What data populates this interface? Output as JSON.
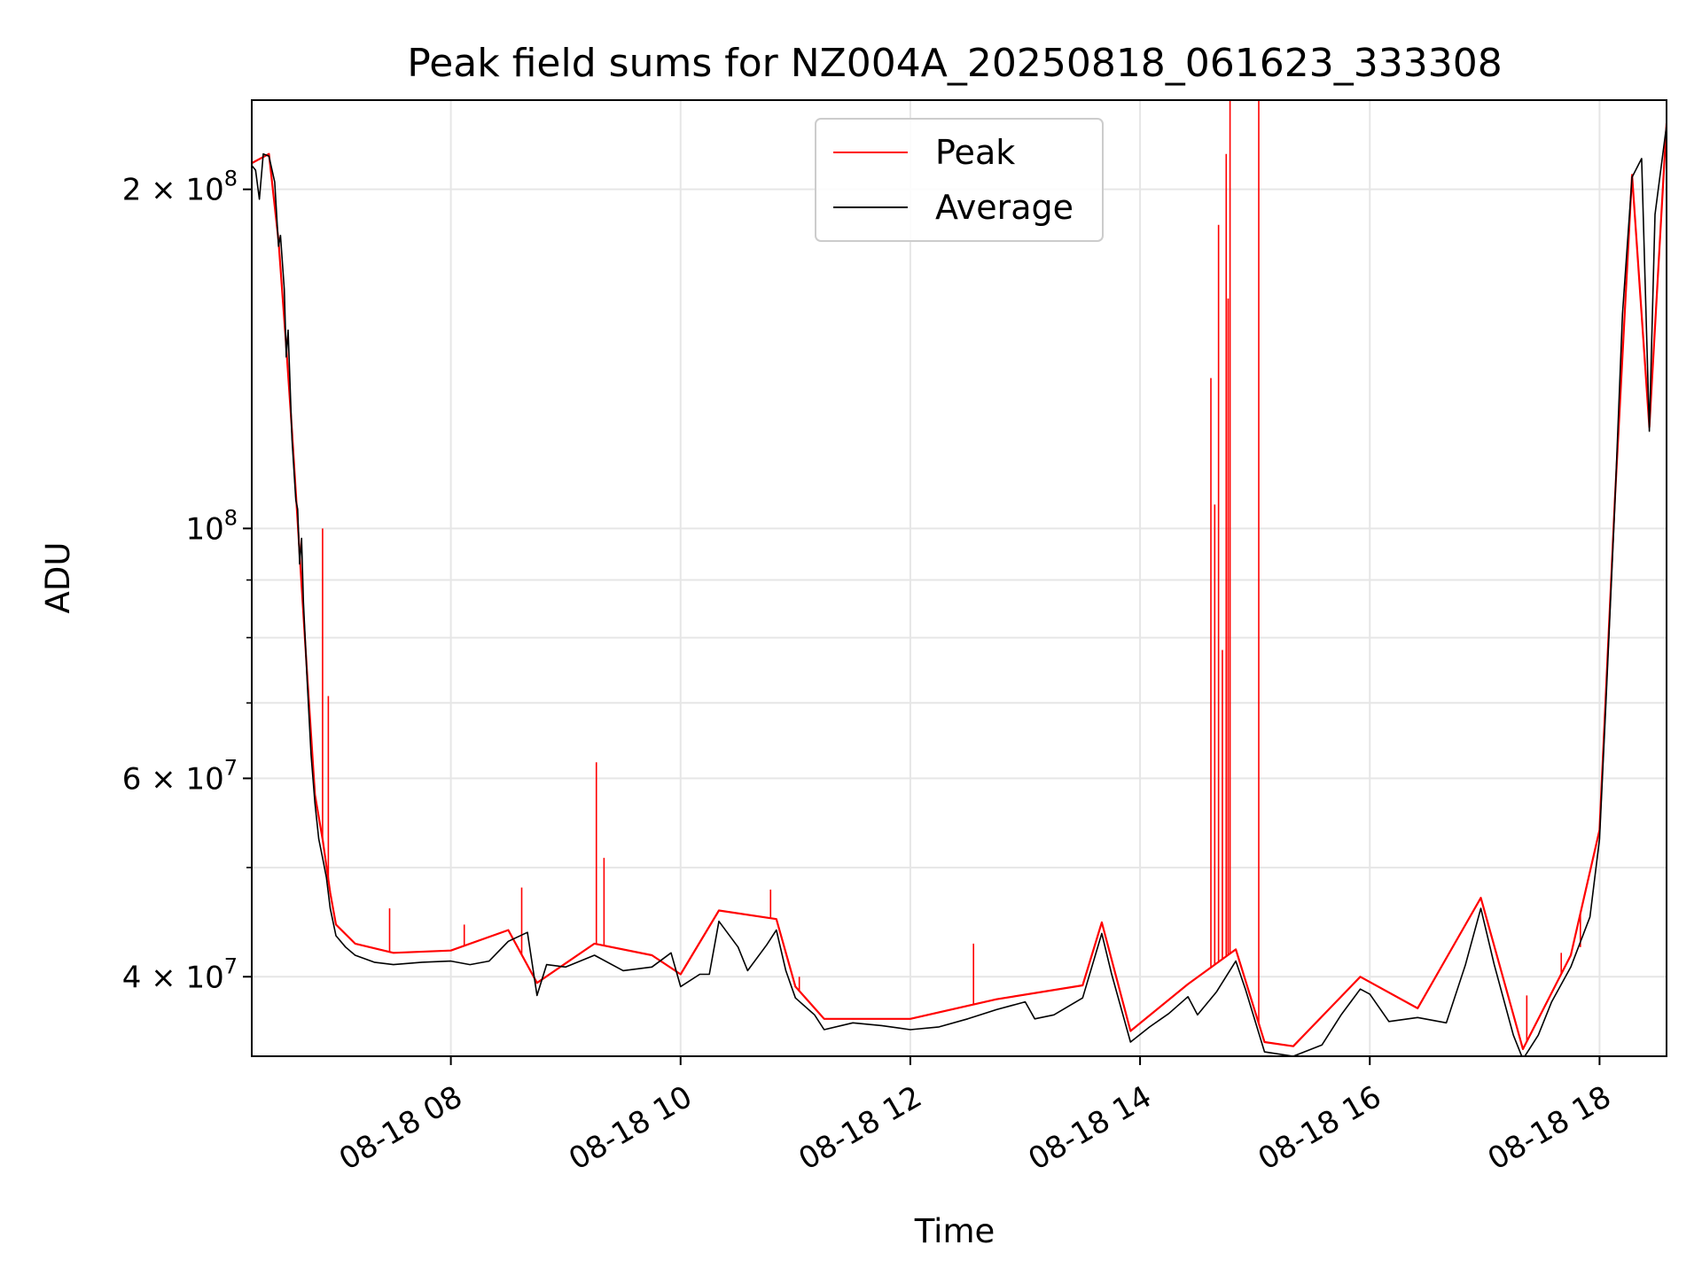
{
  "chart_data": {
    "type": "line",
    "title": "Peak field sums for NZ004A_20250818_061623_333308",
    "xlabel": "Time",
    "ylabel": "ADU",
    "yscale": "log",
    "ylim": [
      34000000,
      240000000
    ],
    "xlim": [
      "2025-08-18 06:16",
      "2025-08-18 18:35"
    ],
    "grid": true,
    "legend": {
      "placement": "upper-center",
      "entries": [
        "Peak",
        "Average"
      ]
    },
    "x_ticks": [
      {
        "t": "2025-08-18 08:00",
        "label": "08-18 08"
      },
      {
        "t": "2025-08-18 10:00",
        "label": "08-18 10"
      },
      {
        "t": "2025-08-18 12:00",
        "label": "08-18 12"
      },
      {
        "t": "2025-08-18 14:00",
        "label": "08-18 14"
      },
      {
        "t": "2025-08-18 16:00",
        "label": "08-18 16"
      },
      {
        "t": "2025-08-18 18:00",
        "label": "08-18 18"
      }
    ],
    "y_ticks": [
      {
        "value": 40000000,
        "mantissa": "4",
        "exponent": "7"
      },
      {
        "value": 60000000,
        "mantissa": "6",
        "exponent": "7"
      },
      {
        "value": 100000000,
        "mantissa": "",
        "exponent": "8"
      },
      {
        "value": 200000000,
        "mantissa": "2",
        "exponent": "8"
      }
    ],
    "y_minor_ticks": [
      50000000,
      70000000,
      80000000,
      90000000
    ],
    "series": [
      {
        "name": "Average",
        "color": "#000000",
        "points": [
          [
            "2025-08-18 06:16",
            210000000
          ],
          [
            "2025-08-18 06:18",
            208000000
          ],
          [
            "2025-08-18 06:20",
            196000000
          ],
          [
            "2025-08-18 06:22",
            215000000
          ],
          [
            "2025-08-18 06:25",
            214000000
          ],
          [
            "2025-08-18 06:28",
            203000000
          ],
          [
            "2025-08-18 06:30",
            178000000
          ],
          [
            "2025-08-18 06:31",
            182000000
          ],
          [
            "2025-08-18 06:33",
            163000000
          ],
          [
            "2025-08-18 06:34",
            142000000
          ],
          [
            "2025-08-18 06:35",
            150000000
          ],
          [
            "2025-08-18 06:37",
            120000000
          ],
          [
            "2025-08-18 06:39",
            106000000
          ],
          [
            "2025-08-18 06:40",
            104000000
          ],
          [
            "2025-08-18 06:41",
            93000000
          ],
          [
            "2025-08-18 06:42",
            98000000
          ],
          [
            "2025-08-18 06:43",
            86000000
          ],
          [
            "2025-08-18 06:45",
            73000000
          ],
          [
            "2025-08-18 06:47",
            63000000
          ],
          [
            "2025-08-18 06:49",
            57000000
          ],
          [
            "2025-08-18 06:51",
            53000000
          ],
          [
            "2025-08-18 06:53",
            51000000
          ],
          [
            "2025-08-18 06:55",
            49000000
          ],
          [
            "2025-08-18 06:57",
            46000000
          ],
          [
            "2025-08-18 07:00",
            43500000
          ],
          [
            "2025-08-18 07:05",
            42500000
          ],
          [
            "2025-08-18 07:10",
            41800000
          ],
          [
            "2025-08-18 07:20",
            41200000
          ],
          [
            "2025-08-18 07:30",
            41000000
          ],
          [
            "2025-08-18 07:45",
            41200000
          ],
          [
            "2025-08-18 08:00",
            41300000
          ],
          [
            "2025-08-18 08:10",
            41000000
          ],
          [
            "2025-08-18 08:20",
            41300000
          ],
          [
            "2025-08-18 08:30",
            43000000
          ],
          [
            "2025-08-18 08:40",
            43800000
          ],
          [
            "2025-08-18 08:50",
            41000000
          ],
          [
            "2025-08-18 08:45",
            38500000
          ],
          [
            "2025-08-18 09:00",
            40800000
          ],
          [
            "2025-08-18 09:15",
            41800000
          ],
          [
            "2025-08-18 09:30",
            40500000
          ],
          [
            "2025-08-18 09:45",
            40800000
          ],
          [
            "2025-08-18 09:55",
            42000000
          ],
          [
            "2025-08-18 10:00",
            39200000
          ],
          [
            "2025-08-18 10:10",
            40200000
          ],
          [
            "2025-08-18 10:15",
            40200000
          ],
          [
            "2025-08-18 10:20",
            44800000
          ],
          [
            "2025-08-18 10:30",
            42500000
          ],
          [
            "2025-08-18 10:35",
            40500000
          ],
          [
            "2025-08-18 10:45",
            42700000
          ],
          [
            "2025-08-18 10:50",
            44000000
          ],
          [
            "2025-08-18 10:55",
            40500000
          ],
          [
            "2025-08-18 11:00",
            38300000
          ],
          [
            "2025-08-18 11:10",
            37000000
          ],
          [
            "2025-08-18 11:15",
            35900000
          ],
          [
            "2025-08-18 11:30",
            36400000
          ],
          [
            "2025-08-18 11:45",
            36200000
          ],
          [
            "2025-08-18 12:00",
            35900000
          ],
          [
            "2025-08-18 12:15",
            36100000
          ],
          [
            "2025-08-18 12:30",
            36700000
          ],
          [
            "2025-08-18 12:45",
            37400000
          ],
          [
            "2025-08-18 13:00",
            38000000
          ],
          [
            "2025-08-18 13:05",
            36700000
          ],
          [
            "2025-08-18 13:15",
            37000000
          ],
          [
            "2025-08-18 13:30",
            38300000
          ],
          [
            "2025-08-18 13:40",
            43700000
          ],
          [
            "2025-08-18 13:45",
            40300000
          ],
          [
            "2025-08-18 13:55",
            35000000
          ],
          [
            "2025-08-18 14:05",
            36100000
          ],
          [
            "2025-08-18 14:15",
            37100000
          ],
          [
            "2025-08-18 14:25",
            38400000
          ],
          [
            "2025-08-18 14:30",
            37000000
          ],
          [
            "2025-08-18 14:40",
            38800000
          ],
          [
            "2025-08-18 14:50",
            41300000
          ],
          [
            "2025-08-18 14:55",
            39000000
          ],
          [
            "2025-08-18 15:05",
            34300000
          ],
          [
            "2025-08-18 15:20",
            34000000
          ],
          [
            "2025-08-18 15:35",
            34800000
          ],
          [
            "2025-08-18 15:45",
            37000000
          ],
          [
            "2025-08-18 15:55",
            39000000
          ],
          [
            "2025-08-18 16:00",
            38600000
          ],
          [
            "2025-08-18 16:10",
            36500000
          ],
          [
            "2025-08-18 16:25",
            36800000
          ],
          [
            "2025-08-18 16:40",
            36400000
          ],
          [
            "2025-08-18 16:50",
            41000000
          ],
          [
            "2025-08-18 16:58",
            46000000
          ],
          [
            "2025-08-18 17:05",
            41000000
          ],
          [
            "2025-08-18 17:15",
            35500000
          ],
          [
            "2025-08-18 17:20",
            33800000
          ],
          [
            "2025-08-18 17:28",
            35500000
          ],
          [
            "2025-08-18 17:35",
            38000000
          ],
          [
            "2025-08-18 17:45",
            40800000
          ],
          [
            "2025-08-18 17:55",
            45200000
          ],
          [
            "2025-08-18 18:00",
            53000000
          ],
          [
            "2025-08-18 18:03",
            68000000
          ],
          [
            "2025-08-18 18:08",
            105000000
          ],
          [
            "2025-08-18 18:12",
            155000000
          ],
          [
            "2025-08-18 18:17",
            205000000
          ],
          [
            "2025-08-18 18:22",
            213000000
          ],
          [
            "2025-08-18 18:26",
            122000000
          ],
          [
            "2025-08-18 18:29",
            190000000
          ],
          [
            "2025-08-18 18:35",
            228000000
          ]
        ]
      },
      {
        "name": "Peak",
        "color": "#ff0000",
        "points": [
          [
            "2025-08-18 06:16",
            211000000
          ],
          [
            "2025-08-18 06:25",
            215000000
          ],
          [
            "2025-08-18 06:30",
            180000000
          ],
          [
            "2025-08-18 06:34",
            145000000
          ],
          [
            "2025-08-18 06:37",
            122000000
          ],
          [
            "2025-08-18 06:41",
            95000000
          ],
          [
            "2025-08-18 06:45",
            74000000
          ],
          [
            "2025-08-18 06:49",
            58000000
          ],
          [
            "2025-08-18 06:53",
            53000000
          ],
          [
            "2025-08-18 06:57",
            47500000
          ],
          [
            "2025-08-18 07:00",
            44500000
          ],
          [
            "2025-08-18 07:10",
            42800000
          ],
          [
            "2025-08-18 07:30",
            42000000
          ],
          [
            "2025-08-18 08:00",
            42200000
          ],
          [
            "2025-08-18 08:30",
            44000000
          ],
          [
            "2025-08-18 08:45",
            39500000
          ],
          [
            "2025-08-18 09:15",
            42800000
          ],
          [
            "2025-08-18 09:45",
            41800000
          ],
          [
            "2025-08-18 10:00",
            40200000
          ],
          [
            "2025-08-18 10:20",
            45800000
          ],
          [
            "2025-08-18 10:50",
            45000000
          ],
          [
            "2025-08-18 11:00",
            39200000
          ],
          [
            "2025-08-18 11:15",
            36700000
          ],
          [
            "2025-08-18 12:00",
            36700000
          ],
          [
            "2025-08-18 12:45",
            38200000
          ],
          [
            "2025-08-18 13:30",
            39300000
          ],
          [
            "2025-08-18 13:40",
            44700000
          ],
          [
            "2025-08-18 13:55",
            35800000
          ],
          [
            "2025-08-18 14:25",
            39400000
          ],
          [
            "2025-08-18 14:50",
            42300000
          ],
          [
            "2025-08-18 15:05",
            35000000
          ],
          [
            "2025-08-18 15:20",
            34700000
          ],
          [
            "2025-08-18 15:55",
            40000000
          ],
          [
            "2025-08-18 16:25",
            37500000
          ],
          [
            "2025-08-18 16:58",
            47000000
          ],
          [
            "2025-08-18 17:20",
            34500000
          ],
          [
            "2025-08-18 17:45",
            41800000
          ],
          [
            "2025-08-18 18:00",
            54000000
          ],
          [
            "2025-08-18 18:08",
            106000000
          ],
          [
            "2025-08-18 18:17",
            206000000
          ],
          [
            "2025-08-18 18:26",
            123000000
          ],
          [
            "2025-08-18 18:35",
            229000000
          ]
        ],
        "spikes": [
          [
            "2025-08-18 06:53",
            100000000
          ],
          [
            "2025-08-18 06:56",
            71000000
          ],
          [
            "2025-08-18 07:28",
            46000000
          ],
          [
            "2025-08-18 08:07",
            44500000
          ],
          [
            "2025-08-18 08:37",
            48000000
          ],
          [
            "2025-08-18 09:16",
            62000000
          ],
          [
            "2025-08-18 09:20",
            51000000
          ],
          [
            "2025-08-18 10:47",
            47800000
          ],
          [
            "2025-08-18 11:02",
            40000000
          ],
          [
            "2025-08-18 12:33",
            42800000
          ],
          [
            "2025-08-18 14:37",
            136000000
          ],
          [
            "2025-08-18 14:39",
            105000000
          ],
          [
            "2025-08-18 14:41",
            186000000
          ],
          [
            "2025-08-18 14:43",
            78000000
          ],
          [
            "2025-08-18 14:45",
            215000000
          ],
          [
            "2025-08-18 14:46",
            160000000
          ],
          [
            "2025-08-18 14:47",
            240000000
          ],
          [
            "2025-08-18 15:02",
            240000000
          ],
          [
            "2025-08-18 17:22",
            38500000
          ],
          [
            "2025-08-18 17:40",
            42000000
          ],
          [
            "2025-08-18 17:50",
            42500000
          ]
        ]
      }
    ]
  }
}
